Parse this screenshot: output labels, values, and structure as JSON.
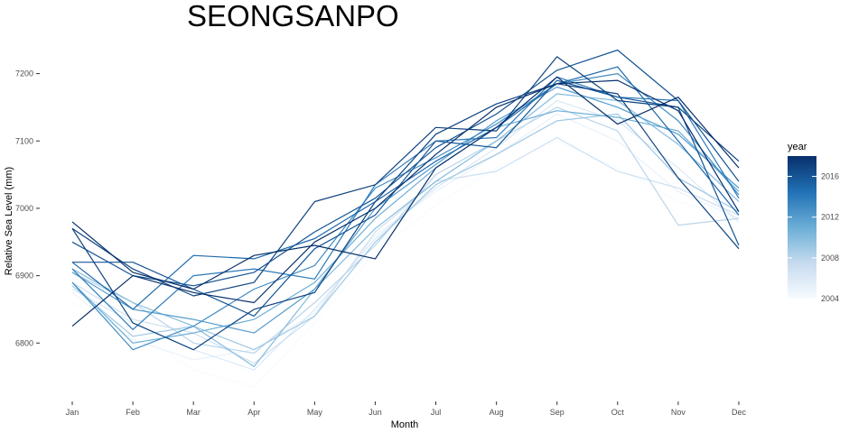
{
  "chart_data": {
    "type": "line",
    "title": "SEONGSANPO",
    "xlabel": "Month",
    "ylabel": "Relative Sea Level (mm)",
    "categories": [
      "Jan",
      "Feb",
      "Mar",
      "Apr",
      "May",
      "Jun",
      "Jul",
      "Aug",
      "Sep",
      "Oct",
      "Nov",
      "Dec"
    ],
    "ylim": [
      6720,
      7245
    ],
    "yticks": [
      6800,
      6900,
      7000,
      7100,
      7200
    ],
    "yticklabels": [
      "6800",
      "6900",
      "7000",
      "7100",
      "7200"
    ],
    "grid": false,
    "legend": {
      "title": "year",
      "position": "right",
      "range": [
        2004,
        2018
      ],
      "ticks": [
        2004,
        2008,
        2012,
        2016
      ],
      "tick_labels": [
        "2004",
        "2008",
        "2012",
        "2016"
      ],
      "color_low": "#f7fbff",
      "color_high": "#08306b"
    },
    "series": [
      {
        "year": 2004,
        "values": [
          6860,
          6820,
          6760,
          6735,
          6830,
          6935,
          7005,
          7060,
          7100,
          7060,
          7010,
          6985
        ]
      },
      {
        "year": 2005,
        "values": [
          6875,
          6805,
          6775,
          6790,
          6845,
          6960,
          7025,
          7080,
          7140,
          7100,
          7025,
          6985
        ]
      },
      {
        "year": 2006,
        "values": [
          6880,
          6830,
          6790,
          6760,
          6850,
          6955,
          7030,
          7090,
          7160,
          7130,
          7060,
          6980
        ]
      },
      {
        "year": 2007,
        "values": [
          6890,
          6835,
          6815,
          6770,
          6840,
          6965,
          7040,
          7055,
          7105,
          7055,
          7030,
          6990
        ]
      },
      {
        "year": 2008,
        "values": [
          6905,
          6860,
          6800,
          6785,
          6860,
          6945,
          7050,
          7100,
          7150,
          7115,
          6975,
          6985
        ]
      },
      {
        "year": 2009,
        "values": [
          6885,
          6810,
          6825,
          6790,
          6840,
          6950,
          7035,
          7080,
          7130,
          7140,
          7045,
          6995
        ]
      },
      {
        "year": 2010,
        "values": [
          6910,
          6860,
          6825,
          6765,
          6880,
          6970,
          7040,
          7100,
          7170,
          7160,
          7095,
          7010
        ]
      },
      {
        "year": 2011,
        "values": [
          6890,
          6800,
          6815,
          6835,
          6890,
          6985,
          7060,
          7120,
          7145,
          7135,
          7115,
          7025
        ]
      },
      {
        "year": 2012,
        "values": [
          6905,
          6850,
          6835,
          6815,
          6880,
          7000,
          7065,
          7130,
          7180,
          7150,
          7110,
          7030
        ]
      },
      {
        "year": 2013,
        "values": [
          6890,
          6790,
          6825,
          6880,
          6915,
          7030,
          7075,
          7125,
          7185,
          7200,
          7130,
          7020
        ]
      },
      {
        "year": 2014,
        "values": [
          6910,
          6820,
          6900,
          6910,
          6895,
          7035,
          7100,
          7105,
          7195,
          7165,
          7160,
          7015
        ]
      },
      {
        "year": 2015,
        "values": [
          6920,
          6850,
          6930,
          6925,
          6955,
          7010,
          7070,
          7120,
          7185,
          7210,
          7100,
          6990
        ]
      },
      {
        "year": 2016,
        "values": [
          6950,
          6900,
          6885,
          6905,
          6965,
          7015,
          7090,
          7140,
          7205,
          7235,
          7160,
          7040
        ]
      },
      {
        "year": 2017,
        "values": [
          6970,
          6910,
          6870,
          6890,
          7010,
          7035,
          7120,
          7115,
          7225,
          7160,
          7150,
          7070
        ]
      },
      {
        "year": 2018,
        "values": [
          6980,
          6905,
          6880,
          6930,
          6945,
          6925,
          7060,
          7120,
          7195,
          7125,
          7165,
          7060
        ]
      },
      {
        "year": 2018,
        "values": [
          6825,
          6900,
          6875,
          6860,
          6950,
          7000,
          7080,
          7150,
          7185,
          7190,
          7145,
          6995
        ]
      },
      {
        "year": 2017,
        "values": [
          6970,
          6830,
          6790,
          6850,
          6875,
          7010,
          7110,
          7155,
          7185,
          7170,
          7045,
          6940
        ]
      },
      {
        "year": 2016,
        "values": [
          6920,
          6920,
          6880,
          6840,
          6940,
          6990,
          7100,
          7090,
          7190,
          7165,
          7150,
          6945
        ]
      }
    ]
  }
}
